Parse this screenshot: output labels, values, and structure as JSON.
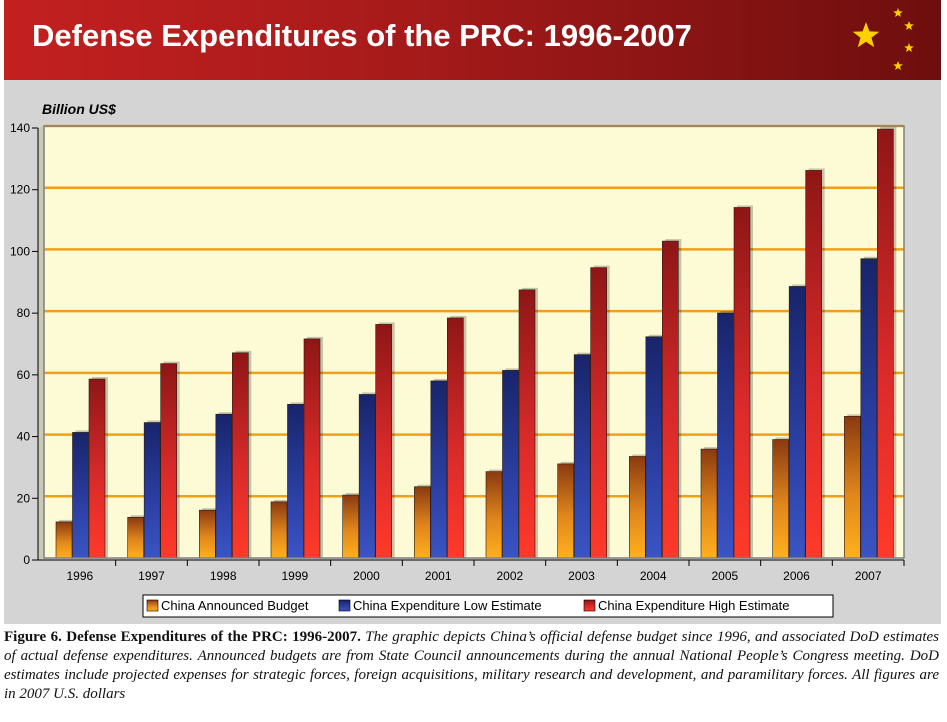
{
  "header": {
    "title": "Defense Expenditures of the PRC: 1996-2007"
  },
  "colors": {
    "banner": "#b01c1c",
    "star": "#ffd000",
    "plot_background": "#fdfbd6",
    "gridline": "#f0a018",
    "panel": "#d4d4d4",
    "announced": "#e08a1c",
    "low": "#263a9c",
    "high": "#e02a2a"
  },
  "chart_data": {
    "type": "bar",
    "title": "",
    "xlabel": "",
    "ylabel": "Billion US$",
    "ylim": [
      0,
      140
    ],
    "yticks": [
      0,
      20,
      40,
      60,
      80,
      100,
      120,
      140
    ],
    "grid": true,
    "legend_position": "bottom",
    "categories": [
      "1996",
      "1997",
      "1998",
      "1999",
      "2000",
      "2001",
      "2002",
      "2003",
      "2004",
      "2005",
      "2006",
      "2007"
    ],
    "series": [
      {
        "name": "China Announced Budget",
        "values": [
          11.7,
          13.2,
          15.5,
          18.2,
          20.4,
          23.1,
          28.0,
          30.5,
          32.9,
          35.3,
          38.4,
          45.9
        ]
      },
      {
        "name": "China Expenditure Low Estimate",
        "values": [
          40.7,
          43.9,
          46.6,
          49.8,
          53.0,
          57.4,
          60.8,
          65.9,
          71.7,
          79.4,
          88.0,
          97.0
        ]
      },
      {
        "name": "China Expenditure High Estimate",
        "values": [
          58.0,
          63.0,
          66.5,
          71.0,
          75.7,
          77.8,
          86.9,
          94.1,
          102.7,
          113.6,
          125.6,
          139.0
        ]
      }
    ]
  },
  "caption": {
    "label": "Figure 6. Defense Expenditures of the PRC:  1996-2007.",
    "text": "The graphic depicts China’s official defense budget since 1996, and associated DoD estimates of actual defense expenditures.  Announced budgets are from State Council announcements during the annual National People’s Congress meeting.  DoD estimates include projected expenses for strategic forces, foreign acquisitions, military research and development, and paramilitary forces.  All figures are in 2007 U.S. dollars"
  }
}
